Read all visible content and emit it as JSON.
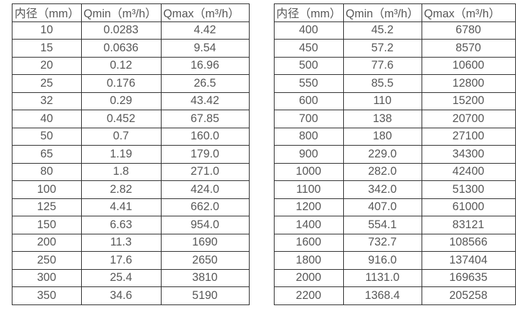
{
  "page": {
    "background": "#ffffff",
    "text_color": "#585858",
    "border_color": "#2e2e2e"
  },
  "header": {
    "col_diameter": "内径（mm）",
    "col_qmin": "Qmin（m³/h）",
    "col_qmax": "Qmax（m³/h）"
  },
  "tables": [
    {
      "name": "small-diameter-table",
      "rows": [
        [
          "10",
          "0.0283",
          "4.42"
        ],
        [
          "15",
          "0.0636",
          "9.54"
        ],
        [
          "20",
          "0.12",
          "16.96"
        ],
        [
          "25",
          "0.176",
          "26.5"
        ],
        [
          "32",
          "0.29",
          "43.42"
        ],
        [
          "40",
          "0.452",
          "67.85"
        ],
        [
          "50",
          "0.7",
          "160.0"
        ],
        [
          "65",
          "1.19",
          "179.0"
        ],
        [
          "80",
          "1.8",
          "271.0"
        ],
        [
          "100",
          "2.82",
          "424.0"
        ],
        [
          "125",
          "4.41",
          "662.0"
        ],
        [
          "150",
          "6.63",
          "954.0"
        ],
        [
          "200",
          "11.3",
          "1690"
        ],
        [
          "250",
          "17.6",
          "2650"
        ],
        [
          "300",
          "25.4",
          "3810"
        ],
        [
          "350",
          "34.6",
          "5190"
        ]
      ]
    },
    {
      "name": "large-diameter-table",
      "rows": [
        [
          "400",
          "45.2",
          "6780"
        ],
        [
          "450",
          "57.2",
          "8570"
        ],
        [
          "500",
          "77.6",
          "10600"
        ],
        [
          "550",
          "85.5",
          "12800"
        ],
        [
          "600",
          "110",
          "15200"
        ],
        [
          "700",
          "138",
          "20700"
        ],
        [
          "800",
          "180",
          "27100"
        ],
        [
          "900",
          "229.0",
          "34300"
        ],
        [
          "1000",
          "282.0",
          "42400"
        ],
        [
          "1100",
          "342.0",
          "51300"
        ],
        [
          "1200",
          "407.0",
          "61000"
        ],
        [
          "1400",
          "554.1",
          "83121"
        ],
        [
          "1600",
          "732.7",
          "108566"
        ],
        [
          "1800",
          "916.0",
          "137404"
        ],
        [
          "2000",
          "1131.0",
          "169635"
        ],
        [
          "2200",
          "1368.4",
          "205258"
        ]
      ]
    }
  ]
}
